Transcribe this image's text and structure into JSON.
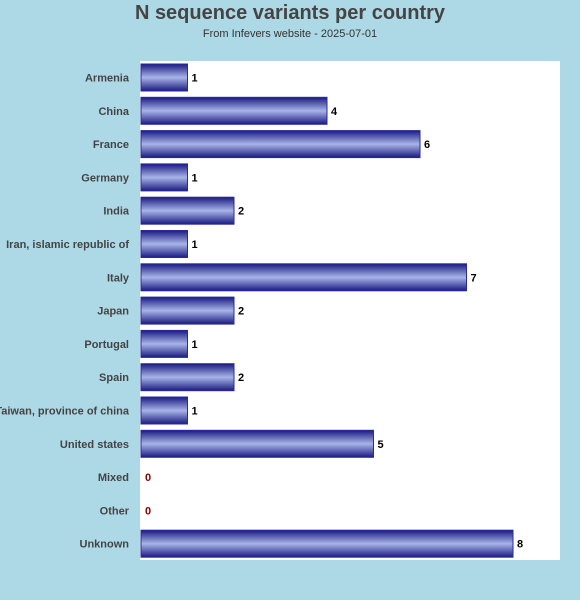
{
  "chart_data": {
    "type": "bar",
    "orientation": "horizontal",
    "title": "N sequence variants per country",
    "subtitle": "From Infevers website - 2025-07-01",
    "categories": [
      "Armenia",
      "China",
      "France",
      "Germany",
      "India",
      "Iran, islamic republic of",
      "Italy",
      "Japan",
      "Portugal",
      "Spain",
      "Taiwan, province of china",
      "United states",
      "Mixed",
      "Other",
      "Unknown"
    ],
    "values": [
      1,
      4,
      6,
      1,
      2,
      1,
      7,
      2,
      1,
      2,
      1,
      5,
      0,
      0,
      8
    ],
    "xlim": [
      0,
      9
    ],
    "grid": false,
    "legend": "none",
    "colors": {
      "bar_dark": "#1a1a80",
      "bar_light": "#a8b4e8",
      "value_label": "#000000",
      "zero_label": "#8b0000",
      "background": "#add8e6",
      "plot_background": "#ffffff",
      "title": "#444444"
    }
  }
}
